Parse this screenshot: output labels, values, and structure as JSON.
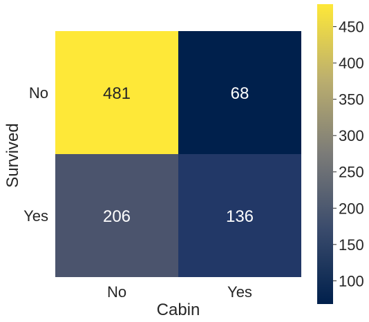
{
  "chart_data": {
    "type": "heatmap",
    "xlabel": "Cabin",
    "ylabel": "Survived",
    "x_categories": [
      "No",
      "Yes"
    ],
    "y_categories": [
      "No",
      "Yes"
    ],
    "values": [
      [
        481,
        68
      ],
      [
        206,
        136
      ]
    ],
    "colormap": "cividis",
    "colorbar": {
      "range": [
        68,
        481
      ],
      "ticks": [
        100,
        150,
        200,
        250,
        300,
        350,
        400,
        450
      ]
    },
    "annotation_colors": {
      "dark_cell": "#ffffff",
      "light_cell": "#262626"
    }
  }
}
